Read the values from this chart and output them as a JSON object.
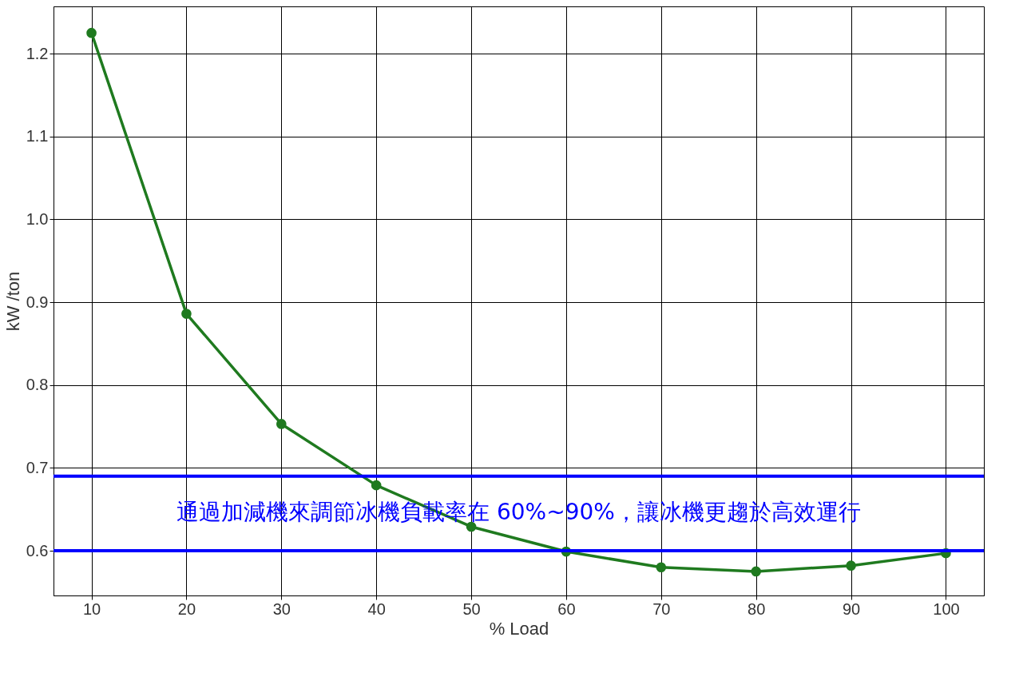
{
  "chart_data": {
    "type": "line",
    "xlabel": "% Load",
    "ylabel": "kW /ton",
    "x": [
      10,
      20,
      30,
      40,
      50,
      60,
      70,
      80,
      90,
      100
    ],
    "series": [
      {
        "color": "#1f7a1f",
        "values": [
          1.225,
          0.886,
          0.753,
          0.679,
          0.629,
          0.599,
          0.58,
          0.575,
          0.582,
          0.597
        ]
      }
    ],
    "xlim": [
      6,
      104
    ],
    "ylim": [
      0.546,
      1.257
    ],
    "xticks": [
      10,
      20,
      30,
      40,
      50,
      60,
      70,
      80,
      90,
      100
    ],
    "yticks": [
      0.6,
      0.7,
      0.8,
      0.9,
      {
        "value": 1,
        "label": "1.0"
      },
      1.1,
      1.2
    ],
    "grid": true,
    "marker": "circle",
    "line_style": "solid",
    "ref_lines": [
      {
        "axis": "y",
        "value": 0.69,
        "color": "#0000ff"
      },
      {
        "axis": "y",
        "value": 0.6,
        "color": "#0000ff"
      }
    ],
    "annotations": [
      "通過加減機來調節冰機負載率在 60%~90%，讓冰機更趨於高效運行"
    ]
  }
}
